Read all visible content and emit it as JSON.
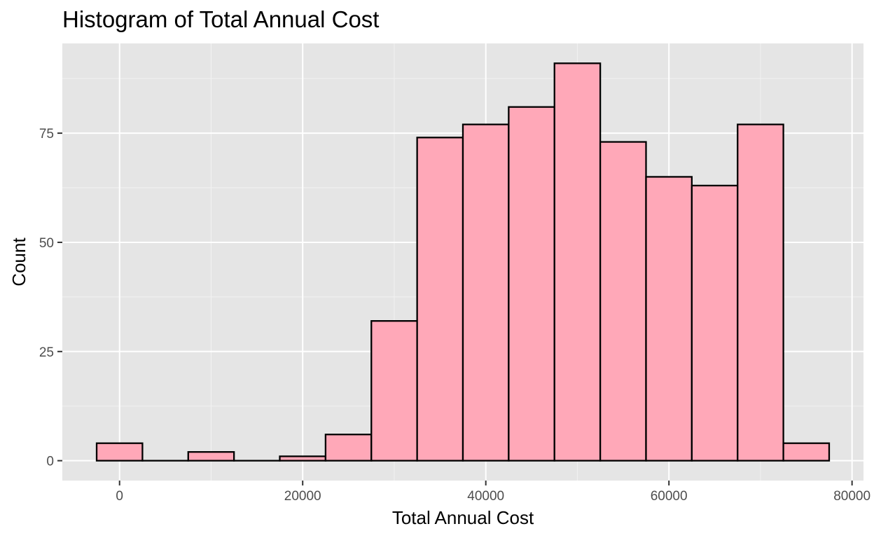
{
  "chart_data": {
    "type": "bar",
    "title": "Histogram of Total Annual Cost",
    "xlabel": "Total Annual Cost",
    "ylabel": "Count",
    "bin_width": 5000,
    "bins": [
      {
        "center": 0,
        "count": 4
      },
      {
        "center": 5000,
        "count": 0
      },
      {
        "center": 10000,
        "count": 2
      },
      {
        "center": 15000,
        "count": 0
      },
      {
        "center": 20000,
        "count": 1
      },
      {
        "center": 25000,
        "count": 6
      },
      {
        "center": 30000,
        "count": 32
      },
      {
        "center": 35000,
        "count": 74
      },
      {
        "center": 40000,
        "count": 77
      },
      {
        "center": 45000,
        "count": 81
      },
      {
        "center": 50000,
        "count": 91
      },
      {
        "center": 55000,
        "count": 73
      },
      {
        "center": 60000,
        "count": 65
      },
      {
        "center": 65000,
        "count": 63
      },
      {
        "center": 70000,
        "count": 77
      },
      {
        "center": 75000,
        "count": 4
      }
    ],
    "xlim": [
      -6250,
      81250
    ],
    "ylim": [
      -4.55,
      95.55
    ],
    "x_ticks": [
      0,
      20000,
      40000,
      60000,
      80000
    ],
    "x_tick_labels": [
      "0",
      "20000",
      "40000",
      "60000",
      "80000"
    ],
    "y_ticks": [
      0,
      25,
      50,
      75
    ],
    "y_tick_labels": [
      "0",
      "25",
      "50",
      "75"
    ],
    "grid": true,
    "colors": {
      "bar_fill": "#ffa8b8",
      "bar_stroke": "#000000",
      "panel_bg": "#e5e5e5",
      "grid_major": "#ffffff",
      "grid_minor": "#f2f2f2"
    }
  }
}
